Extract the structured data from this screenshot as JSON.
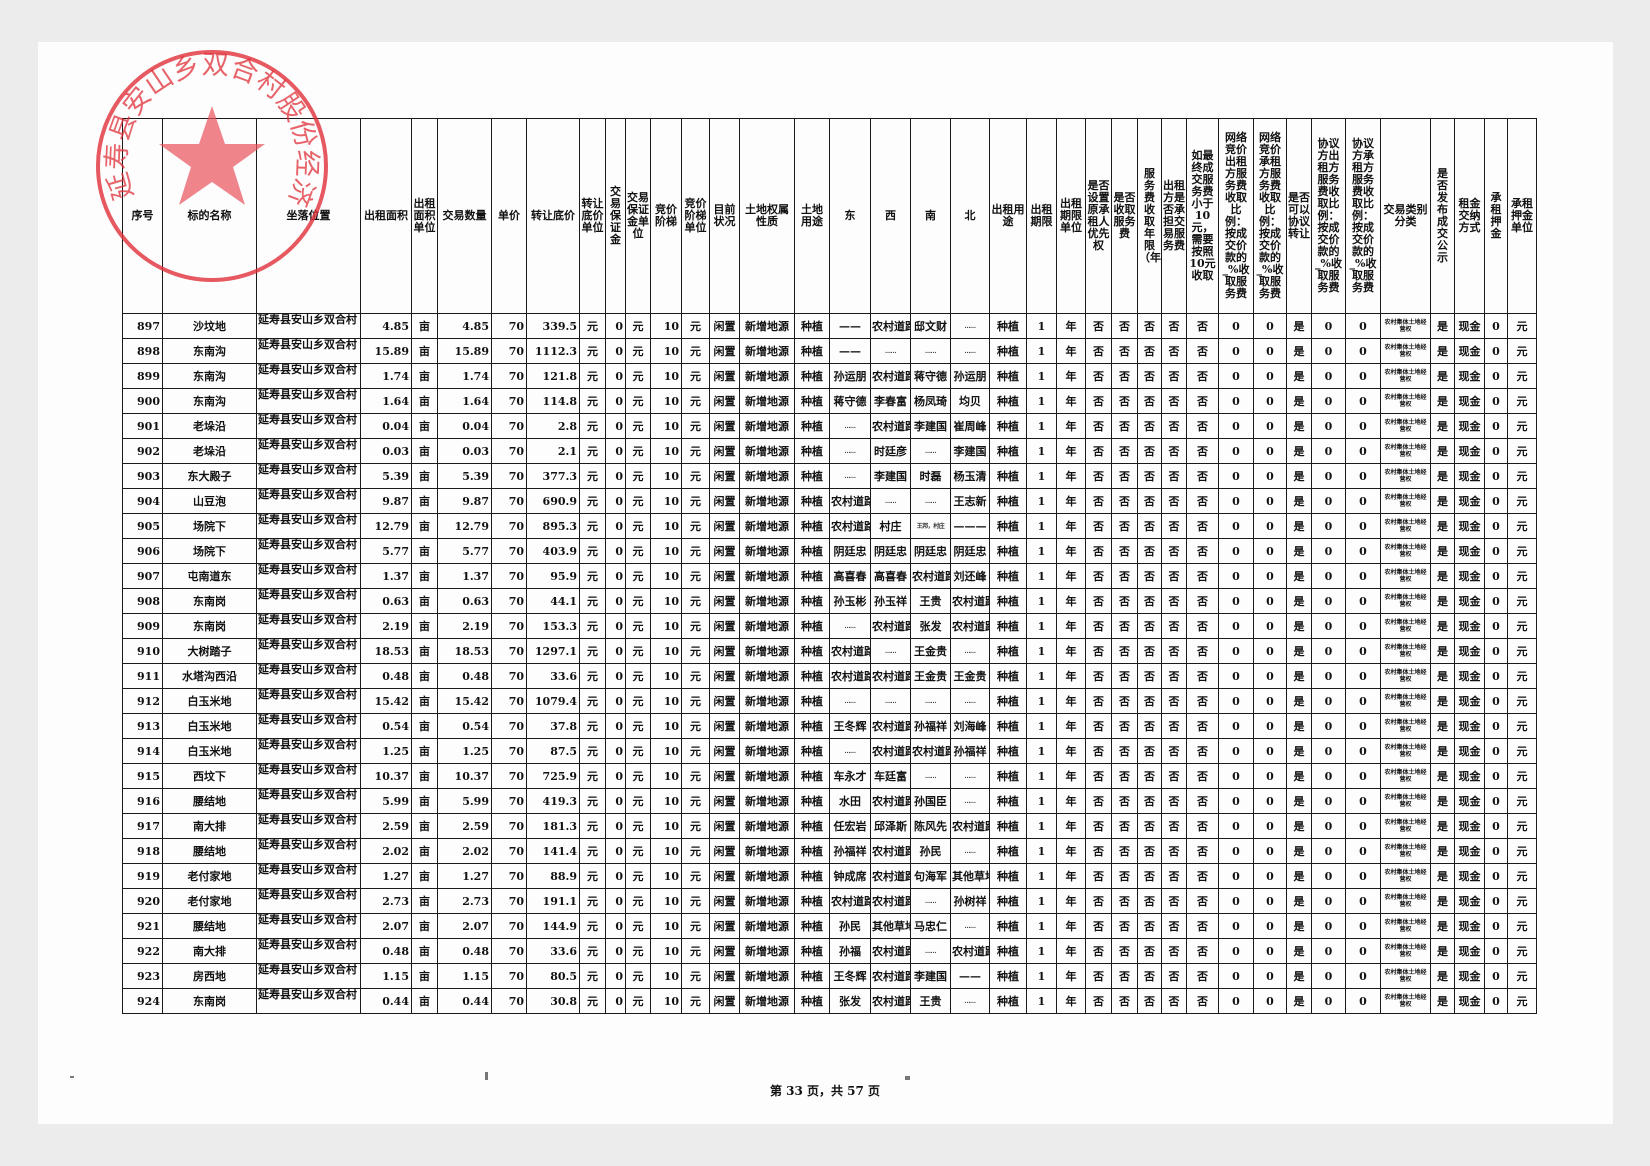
{
  "stamp": {
    "text": "延寿县安山乡双合村股份经济合作社",
    "color": "#e0303a"
  },
  "table": {
    "headers": [
      "序号",
      "标的名称",
      "坐落位置",
      "出租面积",
      "出租面积单位",
      "交易数量",
      "单价",
      "转让底价",
      "转让底价单位",
      "交易保证金",
      "交易保证金单位",
      "竞价阶梯",
      "竞价阶梯单位",
      "目前状况",
      "土地权属性质",
      "土地用途",
      "东",
      "西",
      "南",
      "北",
      "出租用途",
      "出租期限",
      "出租期限单位",
      "是否设置原承租人优先权",
      "是否收取服务费",
      "服务费收取年限（年）",
      "出租方是否承担交易服务费",
      "如最终成交服务费小于10元，需要按照10元收取",
      "网络竞价出租方服务费收取比例：按成交价款的_%收取服务费",
      "网络竞价承租方服务费收取比例：按成交价款的_%收取服务费",
      "是否可以协议转让",
      "协议方出租方服务费收取比例：按成交价款的_%收取服务费",
      "协议方承租方服务费收取比例：按成交价款的_%收取服务费",
      "交易类别分类",
      "是否发布成交公示",
      "租金交纳方式",
      "承租押金",
      "承租押金单位"
    ],
    "rows": [
      [
        "897",
        "沙坟地",
        "延寿县安山乡双合村",
        "4.85",
        "亩",
        "4.85",
        "70",
        "339.5",
        "元",
        "0",
        "元",
        "10",
        "元",
        "闲置",
        "新增地源",
        "种植",
        "——",
        "农村道路",
        "邸文财",
        "……",
        "种植",
        "1",
        "年",
        "否",
        "否",
        "否",
        "否",
        "否",
        "0",
        "0",
        "是",
        "0",
        "0",
        "农村集体土地经营权",
        "是",
        "现金",
        "0",
        "元"
      ],
      [
        "898",
        "东南沟",
        "延寿县安山乡双合村",
        "15.89",
        "亩",
        "15.89",
        "70",
        "1112.3",
        "元",
        "0",
        "元",
        "10",
        "元",
        "闲置",
        "新增地源",
        "种植",
        "——",
        "……",
        "……",
        "……",
        "种植",
        "1",
        "年",
        "否",
        "否",
        "否",
        "否",
        "否",
        "0",
        "0",
        "是",
        "0",
        "0",
        "农村集体土地经营权",
        "是",
        "现金",
        "0",
        "元"
      ],
      [
        "899",
        "东南沟",
        "延寿县安山乡双合村",
        "1.74",
        "亩",
        "1.74",
        "70",
        "121.8",
        "元",
        "0",
        "元",
        "10",
        "元",
        "闲置",
        "新增地源",
        "种植",
        "孙运朋",
        "农村道路",
        "蒋守德",
        "孙运朋",
        "种植",
        "1",
        "年",
        "否",
        "否",
        "否",
        "否",
        "否",
        "0",
        "0",
        "是",
        "0",
        "0",
        "农村集体土地经营权",
        "是",
        "现金",
        "0",
        "元"
      ],
      [
        "900",
        "东南沟",
        "延寿县安山乡双合村",
        "1.64",
        "亩",
        "1.64",
        "70",
        "114.8",
        "元",
        "0",
        "元",
        "10",
        "元",
        "闲置",
        "新增地源",
        "种植",
        "蒋守德",
        "李春富",
        "杨凤琦",
        "均贝",
        "种植",
        "1",
        "年",
        "否",
        "否",
        "否",
        "否",
        "否",
        "0",
        "0",
        "是",
        "0",
        "0",
        "农村集体土地经营权",
        "是",
        "现金",
        "0",
        "元"
      ],
      [
        "901",
        "老垛沿",
        "延寿县安山乡双合村",
        "0.04",
        "亩",
        "0.04",
        "70",
        "2.8",
        "元",
        "0",
        "元",
        "10",
        "元",
        "闲置",
        "新增地源",
        "种植",
        "……",
        "农村道路",
        "李建国",
        "崔周峰",
        "种植",
        "1",
        "年",
        "否",
        "否",
        "否",
        "否",
        "否",
        "0",
        "0",
        "是",
        "0",
        "0",
        "农村集体土地经营权",
        "是",
        "现金",
        "0",
        "元"
      ],
      [
        "902",
        "老垛沿",
        "延寿县安山乡双合村",
        "0.03",
        "亩",
        "0.03",
        "70",
        "2.1",
        "元",
        "0",
        "元",
        "10",
        "元",
        "闲置",
        "新增地源",
        "种植",
        "……",
        "时廷彦",
        "……",
        "李建国",
        "种植",
        "1",
        "年",
        "否",
        "否",
        "否",
        "否",
        "否",
        "0",
        "0",
        "是",
        "0",
        "0",
        "农村集体土地经营权",
        "是",
        "现金",
        "0",
        "元"
      ],
      [
        "903",
        "东大殿子",
        "延寿县安山乡双合村",
        "5.39",
        "亩",
        "5.39",
        "70",
        "377.3",
        "元",
        "0",
        "元",
        "10",
        "元",
        "闲置",
        "新增地源",
        "种植",
        "……",
        "李建国",
        "时磊",
        "杨玉清",
        "种植",
        "1",
        "年",
        "否",
        "否",
        "否",
        "否",
        "否",
        "0",
        "0",
        "是",
        "0",
        "0",
        "农村集体土地经营权",
        "是",
        "现金",
        "0",
        "元"
      ],
      [
        "904",
        "山豆泡",
        "延寿县安山乡双合村",
        "9.87",
        "亩",
        "9.87",
        "70",
        "690.9",
        "元",
        "0",
        "元",
        "10",
        "元",
        "闲置",
        "新增地源",
        "种植",
        "农村道路",
        "……",
        "……",
        "王志新",
        "种植",
        "1",
        "年",
        "否",
        "否",
        "否",
        "否",
        "否",
        "0",
        "0",
        "是",
        "0",
        "0",
        "农村集体土地经营权",
        "是",
        "现金",
        "0",
        "元"
      ],
      [
        "905",
        "场院下",
        "延寿县安山乡双合村",
        "12.79",
        "亩",
        "12.79",
        "70",
        "895.3",
        "元",
        "0",
        "元",
        "10",
        "元",
        "闲置",
        "新增地源",
        "种植",
        "农村道路",
        "村庄",
        "王邦，村庄",
        "———",
        "种植",
        "1",
        "年",
        "否",
        "否",
        "否",
        "否",
        "否",
        "0",
        "0",
        "是",
        "0",
        "0",
        "农村集体土地经营权",
        "是",
        "现金",
        "0",
        "元"
      ],
      [
        "906",
        "场院下",
        "延寿县安山乡双合村",
        "5.77",
        "亩",
        "5.77",
        "70",
        "403.9",
        "元",
        "0",
        "元",
        "10",
        "元",
        "闲置",
        "新增地源",
        "种植",
        "阴廷忠",
        "阴廷忠",
        "阴廷忠",
        "阴廷忠",
        "种植",
        "1",
        "年",
        "否",
        "否",
        "否",
        "否",
        "否",
        "0",
        "0",
        "是",
        "0",
        "0",
        "农村集体土地经营权",
        "是",
        "现金",
        "0",
        "元"
      ],
      [
        "907",
        "屯南道东",
        "延寿县安山乡双合村",
        "1.37",
        "亩",
        "1.37",
        "70",
        "95.9",
        "元",
        "0",
        "元",
        "10",
        "元",
        "闲置",
        "新增地源",
        "种植",
        "高喜春",
        "高喜春",
        "农村道路",
        "刘还峰",
        "种植",
        "1",
        "年",
        "否",
        "否",
        "否",
        "否",
        "否",
        "0",
        "0",
        "是",
        "0",
        "0",
        "农村集体土地经营权",
        "是",
        "现金",
        "0",
        "元"
      ],
      [
        "908",
        "东南岗",
        "延寿县安山乡双合村",
        "0.63",
        "亩",
        "0.63",
        "70",
        "44.1",
        "元",
        "0",
        "元",
        "10",
        "元",
        "闲置",
        "新增地源",
        "种植",
        "孙玉彬",
        "孙玉祥",
        "王贵",
        "农村道路",
        "种植",
        "1",
        "年",
        "否",
        "否",
        "否",
        "否",
        "否",
        "0",
        "0",
        "是",
        "0",
        "0",
        "农村集体土地经营权",
        "是",
        "现金",
        "0",
        "元"
      ],
      [
        "909",
        "东南岗",
        "延寿县安山乡双合村",
        "2.19",
        "亩",
        "2.19",
        "70",
        "153.3",
        "元",
        "0",
        "元",
        "10",
        "元",
        "闲置",
        "新增地源",
        "种植",
        "……",
        "农村道路",
        "张发",
        "农村道路",
        "种植",
        "1",
        "年",
        "否",
        "否",
        "否",
        "否",
        "否",
        "0",
        "0",
        "是",
        "0",
        "0",
        "农村集体土地经营权",
        "是",
        "现金",
        "0",
        "元"
      ],
      [
        "910",
        "大树踏子",
        "延寿县安山乡双合村",
        "18.53",
        "亩",
        "18.53",
        "70",
        "1297.1",
        "元",
        "0",
        "元",
        "10",
        "元",
        "闲置",
        "新增地源",
        "种植",
        "农村道路",
        "……",
        "王金贵",
        "……",
        "种植",
        "1",
        "年",
        "否",
        "否",
        "否",
        "否",
        "否",
        "0",
        "0",
        "是",
        "0",
        "0",
        "农村集体土地经营权",
        "是",
        "现金",
        "0",
        "元"
      ],
      [
        "911",
        "水塔沟西沿",
        "延寿县安山乡双合村",
        "0.48",
        "亩",
        "0.48",
        "70",
        "33.6",
        "元",
        "0",
        "元",
        "10",
        "元",
        "闲置",
        "新增地源",
        "种植",
        "农村道路",
        "农村道路",
        "王金贵",
        "王金贵",
        "种植",
        "1",
        "年",
        "否",
        "否",
        "否",
        "否",
        "否",
        "0",
        "0",
        "是",
        "0",
        "0",
        "农村集体土地经营权",
        "是",
        "现金",
        "0",
        "元"
      ],
      [
        "912",
        "白玉米地",
        "延寿县安山乡双合村",
        "15.42",
        "亩",
        "15.42",
        "70",
        "1079.4",
        "元",
        "0",
        "元",
        "10",
        "元",
        "闲置",
        "新增地源",
        "种植",
        "……",
        "……",
        "……",
        "……",
        "种植",
        "1",
        "年",
        "否",
        "否",
        "否",
        "否",
        "否",
        "0",
        "0",
        "是",
        "0",
        "0",
        "农村集体土地经营权",
        "是",
        "现金",
        "0",
        "元"
      ],
      [
        "913",
        "白玉米地",
        "延寿县安山乡双合村",
        "0.54",
        "亩",
        "0.54",
        "70",
        "37.8",
        "元",
        "0",
        "元",
        "10",
        "元",
        "闲置",
        "新增地源",
        "种植",
        "王冬辉",
        "农村道路",
        "孙福祥",
        "刘海峰",
        "种植",
        "1",
        "年",
        "否",
        "否",
        "否",
        "否",
        "否",
        "0",
        "0",
        "是",
        "0",
        "0",
        "农村集体土地经营权",
        "是",
        "现金",
        "0",
        "元"
      ],
      [
        "914",
        "白玉米地",
        "延寿县安山乡双合村",
        "1.25",
        "亩",
        "1.25",
        "70",
        "87.5",
        "元",
        "0",
        "元",
        "10",
        "元",
        "闲置",
        "新增地源",
        "种植",
        "……",
        "农村道路",
        "农村道路",
        "孙福祥",
        "种植",
        "1",
        "年",
        "否",
        "否",
        "否",
        "否",
        "否",
        "0",
        "0",
        "是",
        "0",
        "0",
        "农村集体土地经营权",
        "是",
        "现金",
        "0",
        "元"
      ],
      [
        "915",
        "西坟下",
        "延寿县安山乡双合村",
        "10.37",
        "亩",
        "10.37",
        "70",
        "725.9",
        "元",
        "0",
        "元",
        "10",
        "元",
        "闲置",
        "新增地源",
        "种植",
        "车永才",
        "车廷富",
        "……",
        "……",
        "种植",
        "1",
        "年",
        "否",
        "否",
        "否",
        "否",
        "否",
        "0",
        "0",
        "是",
        "0",
        "0",
        "农村集体土地经营权",
        "是",
        "现金",
        "0",
        "元"
      ],
      [
        "916",
        "腰结地",
        "延寿县安山乡双合村",
        "5.99",
        "亩",
        "5.99",
        "70",
        "419.3",
        "元",
        "0",
        "元",
        "10",
        "元",
        "闲置",
        "新增地源",
        "种植",
        "水田",
        "农村道路",
        "孙国臣",
        "……",
        "种植",
        "1",
        "年",
        "否",
        "否",
        "否",
        "否",
        "否",
        "0",
        "0",
        "是",
        "0",
        "0",
        "农村集体土地经营权",
        "是",
        "现金",
        "0",
        "元"
      ],
      [
        "917",
        "南大排",
        "延寿县安山乡双合村",
        "2.59",
        "亩",
        "2.59",
        "70",
        "181.3",
        "元",
        "0",
        "元",
        "10",
        "元",
        "闲置",
        "新增地源",
        "种植",
        "任宏岩",
        "邱泽斯",
        "陈风先",
        "农村道路",
        "种植",
        "1",
        "年",
        "否",
        "否",
        "否",
        "否",
        "否",
        "0",
        "0",
        "是",
        "0",
        "0",
        "农村集体土地经营权",
        "是",
        "现金",
        "0",
        "元"
      ],
      [
        "918",
        "腰结地",
        "延寿县安山乡双合村",
        "2.02",
        "亩",
        "2.02",
        "70",
        "141.4",
        "元",
        "0",
        "元",
        "10",
        "元",
        "闲置",
        "新增地源",
        "种植",
        "孙福祥",
        "农村道路",
        "孙民",
        "……",
        "种植",
        "1",
        "年",
        "否",
        "否",
        "否",
        "否",
        "否",
        "0",
        "0",
        "是",
        "0",
        "0",
        "农村集体土地经营权",
        "是",
        "现金",
        "0",
        "元"
      ],
      [
        "919",
        "老付家地",
        "延寿县安山乡双合村",
        "1.27",
        "亩",
        "1.27",
        "70",
        "88.9",
        "元",
        "0",
        "元",
        "10",
        "元",
        "闲置",
        "新增地源",
        "种植",
        "钟成席",
        "农村道路",
        "句海军",
        "其他草地",
        "种植",
        "1",
        "年",
        "否",
        "否",
        "否",
        "否",
        "否",
        "0",
        "0",
        "是",
        "0",
        "0",
        "农村集体土地经营权",
        "是",
        "现金",
        "0",
        "元"
      ],
      [
        "920",
        "老付家地",
        "延寿县安山乡双合村",
        "2.73",
        "亩",
        "2.73",
        "70",
        "191.1",
        "元",
        "0",
        "元",
        "10",
        "元",
        "闲置",
        "新增地源",
        "种植",
        "农村道路",
        "农村道路",
        "……",
        "孙树祥",
        "种植",
        "1",
        "年",
        "否",
        "否",
        "否",
        "否",
        "否",
        "0",
        "0",
        "是",
        "0",
        "0",
        "农村集体土地经营权",
        "是",
        "现金",
        "0",
        "元"
      ],
      [
        "921",
        "腰结地",
        "延寿县安山乡双合村",
        "2.07",
        "亩",
        "2.07",
        "70",
        "144.9",
        "元",
        "0",
        "元",
        "10",
        "元",
        "闲置",
        "新增地源",
        "种植",
        "孙民",
        "其他草地",
        "马忠仁",
        "……",
        "种植",
        "1",
        "年",
        "否",
        "否",
        "否",
        "否",
        "否",
        "0",
        "0",
        "是",
        "0",
        "0",
        "农村集体土地经营权",
        "是",
        "现金",
        "0",
        "元"
      ],
      [
        "922",
        "南大排",
        "延寿县安山乡双合村",
        "0.48",
        "亩",
        "0.48",
        "70",
        "33.6",
        "元",
        "0",
        "元",
        "10",
        "元",
        "闲置",
        "新增地源",
        "种植",
        "孙福",
        "农村道路",
        "……",
        "农村道路",
        "种植",
        "1",
        "年",
        "否",
        "否",
        "否",
        "否",
        "否",
        "0",
        "0",
        "是",
        "0",
        "0",
        "农村集体土地经营权",
        "是",
        "现金",
        "0",
        "元"
      ],
      [
        "923",
        "房西地",
        "延寿县安山乡双合村",
        "1.15",
        "亩",
        "1.15",
        "70",
        "80.5",
        "元",
        "0",
        "元",
        "10",
        "元",
        "闲置",
        "新增地源",
        "种植",
        "王冬辉",
        "农村道路",
        "李建国",
        "——",
        "种植",
        "1",
        "年",
        "否",
        "否",
        "否",
        "否",
        "否",
        "0",
        "0",
        "是",
        "0",
        "0",
        "农村集体土地经营权",
        "是",
        "现金",
        "0",
        "元"
      ],
      [
        "924",
        "东南岗",
        "延寿县安山乡双合村",
        "0.44",
        "亩",
        "0.44",
        "70",
        "30.8",
        "元",
        "0",
        "元",
        "10",
        "元",
        "闲置",
        "新增地源",
        "种植",
        "张发",
        "农村道路",
        "王贵",
        "……",
        "种植",
        "1",
        "年",
        "否",
        "否",
        "否",
        "否",
        "否",
        "0",
        "0",
        "是",
        "0",
        "0",
        "农村集体土地经营权",
        "是",
        "现金",
        "0",
        "元"
      ]
    ]
  },
  "footer": {
    "page_label": "第 33 页，共 57 页"
  }
}
